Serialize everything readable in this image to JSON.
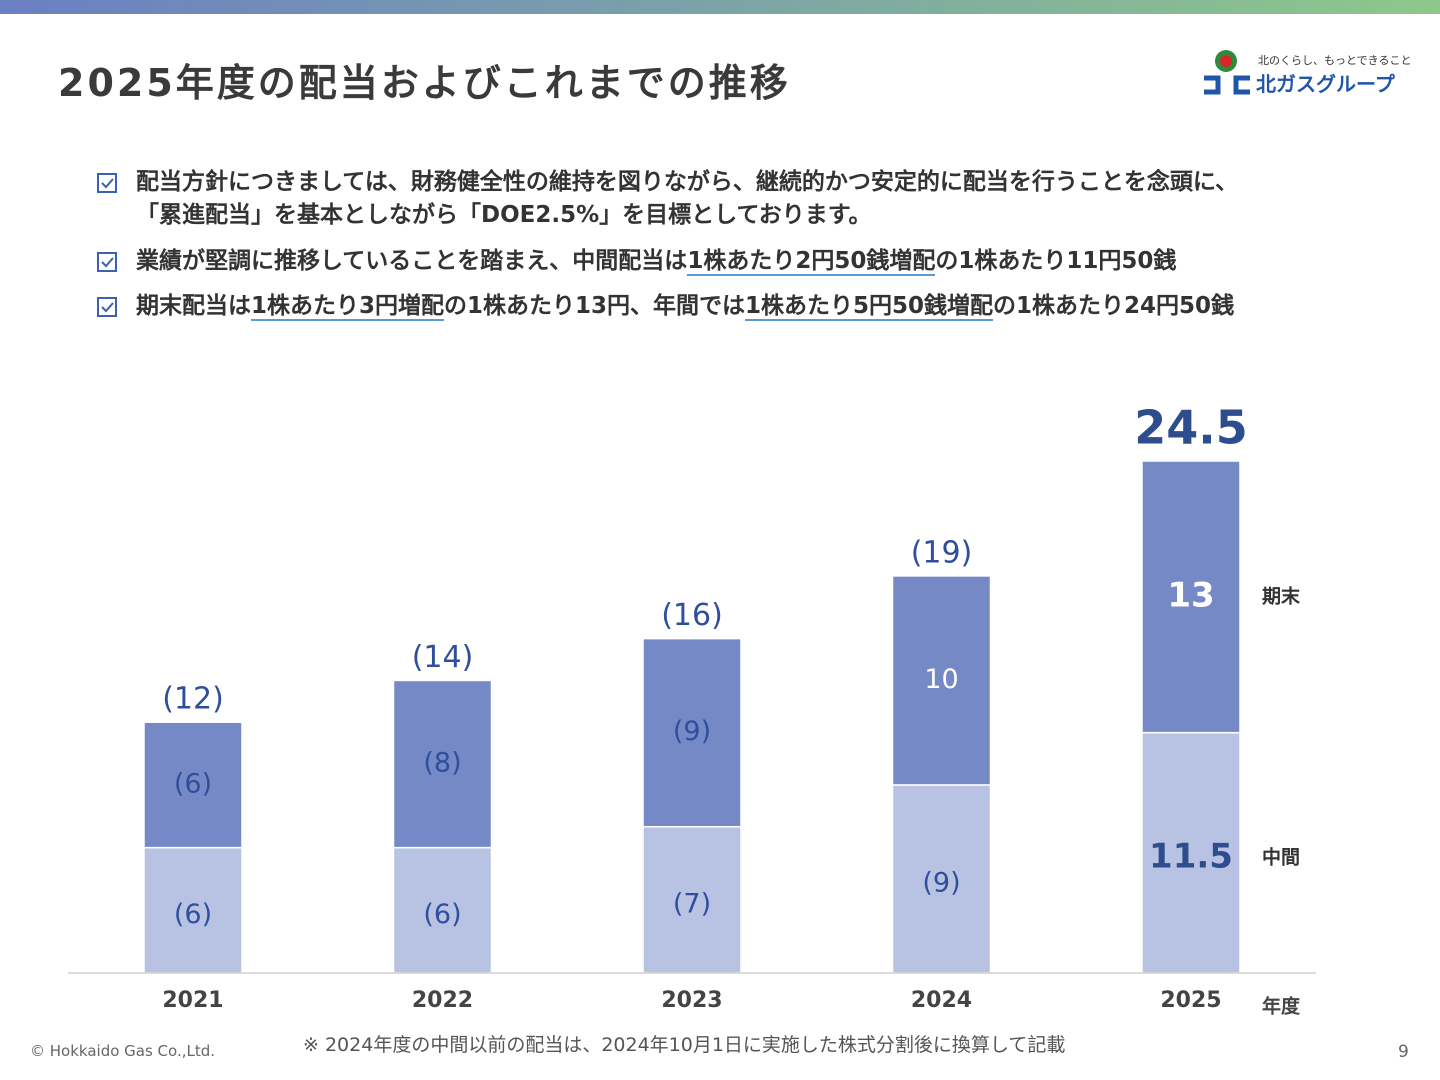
{
  "header": {
    "title": "2025年度の配当およびこれまでの推移",
    "logo_tagline": "北のくらし、もっとできること",
    "logo_name": "北ガスグループ"
  },
  "bullets": [
    {
      "lines": [
        [
          {
            "text": "配当方針につきましては、財務健全性の維持を図りながら、継続的かつ安定的に配当を行うことを念頭に、",
            "underline": false
          }
        ],
        [
          {
            "text": "「累進配当」を基本としながら「DOE2.5%」を目標としております。",
            "underline": false
          }
        ]
      ]
    },
    {
      "lines": [
        [
          {
            "text": "業績が堅調に推移していることを踏まえ、中間配当は",
            "underline": false
          },
          {
            "text": "1株あたり2円50銭増配",
            "underline": true
          },
          {
            "text": "の1株あたり11円50銭",
            "underline": false
          }
        ]
      ]
    },
    {
      "lines": [
        [
          {
            "text": "期末配当は",
            "underline": false
          },
          {
            "text": "1株あたり3円増配",
            "underline": true
          },
          {
            "text": "の1株あたり13円、年間では",
            "underline": false
          },
          {
            "text": "1株あたり5円50銭増配",
            "underline": true
          },
          {
            "text": "の1株あたり24円50銭",
            "underline": false
          }
        ]
      ]
    }
  ],
  "chart_data": {
    "type": "stacked_bar",
    "x_label": "年度",
    "categories": [
      "2021",
      "2022",
      "2023",
      "2024",
      "2025"
    ],
    "series": [
      {
        "name": "中間",
        "color": "#b8c3e3",
        "values": [
          6,
          6,
          7,
          9,
          11.5
        ],
        "value_labels": [
          "(6)",
          "(6)",
          "(7)",
          "(9)",
          "11.5"
        ]
      },
      {
        "name": "期末",
        "color": "#7589c6",
        "values": [
          6,
          8,
          9,
          10,
          13
        ],
        "value_labels": [
          "(6)",
          "(8)",
          "(9)",
          "10",
          "13"
        ]
      }
    ],
    "totals": {
      "values": [
        12,
        14,
        16,
        19,
        24.5
      ],
      "value_labels": [
        "(12)",
        "(14)",
        "(16)",
        "(19)",
        "24.5"
      ]
    }
  },
  "footer": {
    "copyright": "© Hokkaido Gas Co.,Ltd.",
    "note": "※ 2024年度の中間以前の配当は、2024年10月1日に実施した株式分割後に換算して記載",
    "page": "9"
  }
}
